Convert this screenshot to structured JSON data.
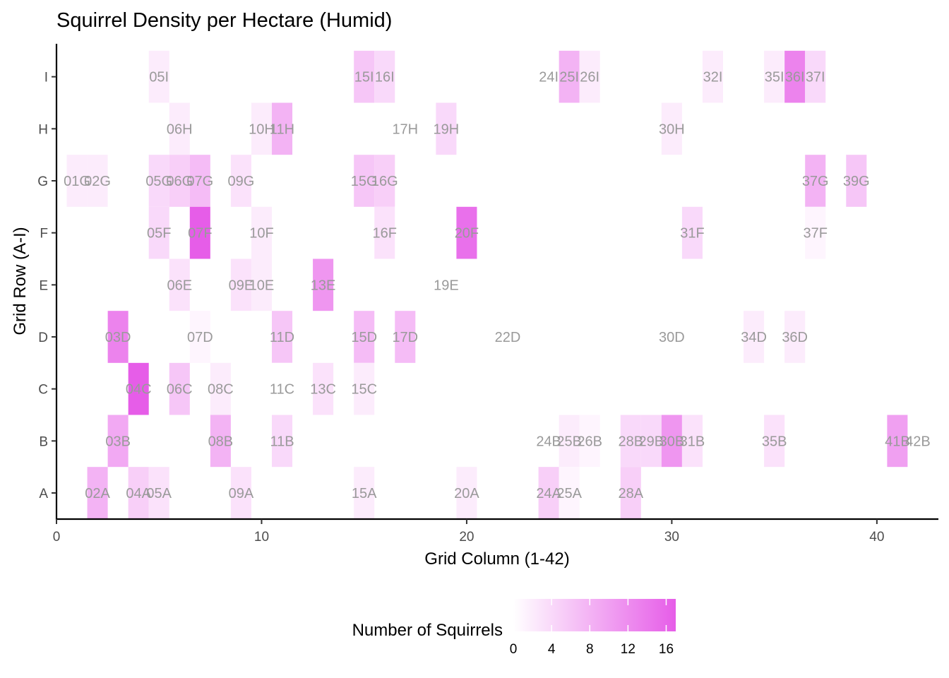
{
  "chart_data": {
    "type": "heatmap",
    "title": "Squirrel Density per Hectare (Humid)",
    "xlabel": "Grid Column (1-42)",
    "ylabel": "Grid Row (A-I)",
    "xlim": [
      0,
      43
    ],
    "x_ticks": [
      0,
      10,
      20,
      30,
      40
    ],
    "y_categories": [
      "A",
      "B",
      "C",
      "D",
      "E",
      "F",
      "G",
      "H",
      "I"
    ],
    "legend": {
      "title": "Number of Squirrels",
      "position": "bottom",
      "min": 0,
      "max": 17,
      "ticks": [
        0,
        4,
        8,
        12,
        16
      ],
      "low_color": "#ffffff",
      "high_color": "#e65de8"
    },
    "cells": [
      {
        "x": 5,
        "y": "I",
        "label": "05I",
        "value": 2
      },
      {
        "x": 15,
        "y": "I",
        "label": "15I",
        "value": 6
      },
      {
        "x": 16,
        "y": "I",
        "label": "16I",
        "value": 4
      },
      {
        "x": 24,
        "y": "I",
        "label": "24I",
        "value": 0
      },
      {
        "x": 25,
        "y": "I",
        "label": "25I",
        "value": 8
      },
      {
        "x": 26,
        "y": "I",
        "label": "26I",
        "value": 2
      },
      {
        "x": 32,
        "y": "I",
        "label": "32I",
        "value": 2
      },
      {
        "x": 35,
        "y": "I",
        "label": "35I",
        "value": 2
      },
      {
        "x": 36,
        "y": "I",
        "label": "36I",
        "value": 13
      },
      {
        "x": 37,
        "y": "I",
        "label": "37I",
        "value": 4
      },
      {
        "x": 6,
        "y": "H",
        "label": "06H",
        "value": 2
      },
      {
        "x": 10,
        "y": "H",
        "label": "10H",
        "value": 2
      },
      {
        "x": 11,
        "y": "H",
        "label": "11H",
        "value": 8
      },
      {
        "x": 17,
        "y": "H",
        "label": "17H",
        "value": 0
      },
      {
        "x": 19,
        "y": "H",
        "label": "19H",
        "value": 4
      },
      {
        "x": 30,
        "y": "H",
        "label": "30H",
        "value": 2
      },
      {
        "x": 1,
        "y": "G",
        "label": "01G",
        "value": 2
      },
      {
        "x": 2,
        "y": "G",
        "label": "02G",
        "value": 2
      },
      {
        "x": 5,
        "y": "G",
        "label": "05G",
        "value": 4
      },
      {
        "x": 6,
        "y": "G",
        "label": "06G",
        "value": 5
      },
      {
        "x": 7,
        "y": "G",
        "label": "07G",
        "value": 7
      },
      {
        "x": 9,
        "y": "G",
        "label": "09G",
        "value": 3
      },
      {
        "x": 15,
        "y": "G",
        "label": "15G",
        "value": 6
      },
      {
        "x": 16,
        "y": "G",
        "label": "16G",
        "value": 5
      },
      {
        "x": 37,
        "y": "G",
        "label": "37G",
        "value": 8
      },
      {
        "x": 39,
        "y": "G",
        "label": "39G",
        "value": 6
      },
      {
        "x": 5,
        "y": "F",
        "label": "05F",
        "value": 4
      },
      {
        "x": 7,
        "y": "F",
        "label": "07F",
        "value": 17
      },
      {
        "x": 10,
        "y": "F",
        "label": "10F",
        "value": 2
      },
      {
        "x": 16,
        "y": "F",
        "label": "16F",
        "value": 3
      },
      {
        "x": 20,
        "y": "F",
        "label": "20F",
        "value": 15
      },
      {
        "x": 31,
        "y": "F",
        "label": "31F",
        "value": 4
      },
      {
        "x": 37,
        "y": "F",
        "label": "37F",
        "value": 1
      },
      {
        "x": 6,
        "y": "E",
        "label": "06E",
        "value": 3
      },
      {
        "x": 9,
        "y": "E",
        "label": "09E",
        "value": 3
      },
      {
        "x": 10,
        "y": "E",
        "label": "10E",
        "value": 2
      },
      {
        "x": 13,
        "y": "E",
        "label": "13E",
        "value": 11
      },
      {
        "x": 19,
        "y": "E",
        "label": "19E",
        "value": 0
      },
      {
        "x": 3,
        "y": "D",
        "label": "03D",
        "value": 13
      },
      {
        "x": 7,
        "y": "D",
        "label": "07D",
        "value": 1
      },
      {
        "x": 11,
        "y": "D",
        "label": "11D",
        "value": 6
      },
      {
        "x": 15,
        "y": "D",
        "label": "15D",
        "value": 7
      },
      {
        "x": 17,
        "y": "D",
        "label": "17D",
        "value": 7
      },
      {
        "x": 22,
        "y": "D",
        "label": "22D",
        "value": 0
      },
      {
        "x": 30,
        "y": "D",
        "label": "30D",
        "value": 0
      },
      {
        "x": 34,
        "y": "D",
        "label": "34D",
        "value": 2
      },
      {
        "x": 36,
        "y": "D",
        "label": "36D",
        "value": 2
      },
      {
        "x": 4,
        "y": "C",
        "label": "04C",
        "value": 17
      },
      {
        "x": 6,
        "y": "C",
        "label": "06C",
        "value": 6
      },
      {
        "x": 8,
        "y": "C",
        "label": "08C",
        "value": 2
      },
      {
        "x": 11,
        "y": "C",
        "label": "11C",
        "value": 0
      },
      {
        "x": 13,
        "y": "C",
        "label": "13C",
        "value": 3
      },
      {
        "x": 15,
        "y": "C",
        "label": "15C",
        "value": 2
      },
      {
        "x": 3,
        "y": "B",
        "label": "03B",
        "value": 9
      },
      {
        "x": 8,
        "y": "B",
        "label": "08B",
        "value": 8
      },
      {
        "x": 11,
        "y": "B",
        "label": "11B",
        "value": 4
      },
      {
        "x": 24,
        "y": "B",
        "label": "24B",
        "value": 0
      },
      {
        "x": 25,
        "y": "B",
        "label": "25B",
        "value": 2
      },
      {
        "x": 26,
        "y": "B",
        "label": "26B",
        "value": 1
      },
      {
        "x": 28,
        "y": "B",
        "label": "28B",
        "value": 4
      },
      {
        "x": 29,
        "y": "B",
        "label": "29B",
        "value": 4
      },
      {
        "x": 30,
        "y": "B",
        "label": "30B",
        "value": 11
      },
      {
        "x": 31,
        "y": "B",
        "label": "31B",
        "value": 3
      },
      {
        "x": 35,
        "y": "B",
        "label": "35B",
        "value": 3
      },
      {
        "x": 41,
        "y": "B",
        "label": "41B",
        "value": 10
      },
      {
        "x": 42,
        "y": "B",
        "label": "42B",
        "value": 0
      },
      {
        "x": 2,
        "y": "A",
        "label": "02A",
        "value": 8
      },
      {
        "x": 4,
        "y": "A",
        "label": "04A",
        "value": 5
      },
      {
        "x": 5,
        "y": "A",
        "label": "05A",
        "value": 3
      },
      {
        "x": 9,
        "y": "A",
        "label": "09A",
        "value": 3
      },
      {
        "x": 15,
        "y": "A",
        "label": "15A",
        "value": 2
      },
      {
        "x": 20,
        "y": "A",
        "label": "20A",
        "value": 2
      },
      {
        "x": 24,
        "y": "A",
        "label": "24A",
        "value": 5
      },
      {
        "x": 25,
        "y": "A",
        "label": "25A",
        "value": 1
      },
      {
        "x": 28,
        "y": "A",
        "label": "28A",
        "value": 5
      }
    ]
  }
}
